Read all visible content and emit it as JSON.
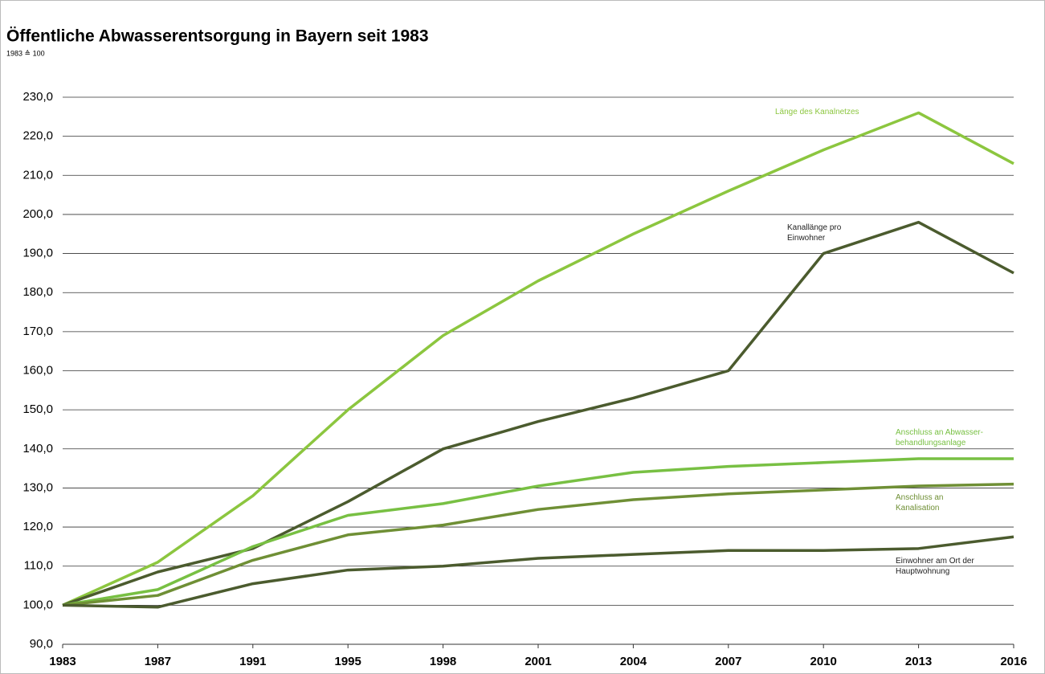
{
  "chart_data": {
    "type": "line",
    "title": "Öffentliche Abwasserentsorgung in Bayern seit 1983",
    "subtitle": "1983 ≙ 100",
    "categories": [
      "1983",
      "1987",
      "1991",
      "1995",
      "1998",
      "2001",
      "2004",
      "2007",
      "2010",
      "2013",
      "2016"
    ],
    "series": [
      {
        "name": "Länge des Kanalnetzes",
        "color": "#8cc63f",
        "values": [
          100,
          111,
          128,
          150,
          169,
          183,
          195,
          206,
          216.5,
          226,
          213
        ]
      },
      {
        "name": "Kanallänge pro Einwohner",
        "color": "#4b5b2e",
        "values": [
          100,
          108.5,
          114.5,
          126.5,
          140,
          147,
          153,
          160,
          190,
          198,
          185
        ]
      },
      {
        "name": "Anschluss an Abwasser-behandlungsanlage",
        "color": "#78c043",
        "values": [
          100,
          104,
          115,
          123,
          126,
          130.5,
          134,
          135.5,
          136.5,
          137.5,
          137.5
        ]
      },
      {
        "name": "Anschluss an Kanalisation",
        "color": "#6f8f35",
        "values": [
          100,
          102.5,
          111.5,
          118,
          120.5,
          124.5,
          127,
          128.5,
          129.5,
          130.5,
          131
        ]
      },
      {
        "name": "Einwohner am Ort der Hauptwohnung",
        "color": "#4b5b2e",
        "values": [
          100,
          99.5,
          105.5,
          109,
          110,
          112,
          113,
          114,
          114,
          114.5,
          117.5
        ]
      }
    ],
    "ylim": [
      90,
      230
    ],
    "yticks": [
      {
        "value": 90,
        "label": "90,0"
      },
      {
        "value": 100,
        "label": "100,0"
      },
      {
        "value": 110,
        "label": "110,0"
      },
      {
        "value": 120,
        "label": "120,0"
      },
      {
        "value": 130,
        "label": "130,0"
      },
      {
        "value": 140,
        "label": "140,0"
      },
      {
        "value": 150,
        "label": "150,0"
      },
      {
        "value": 160,
        "label": "160,0"
      },
      {
        "value": 170,
        "label": "170,0"
      },
      {
        "value": 180,
        "label": "180,0"
      },
      {
        "value": 190,
        "label": "190,0"
      },
      {
        "value": 200,
        "label": "200,0"
      },
      {
        "value": 210,
        "label": "210,0"
      },
      {
        "value": 220,
        "label": "220,0"
      },
      {
        "value": 230,
        "label": "230,0"
      }
    ],
    "grid": true
  }
}
